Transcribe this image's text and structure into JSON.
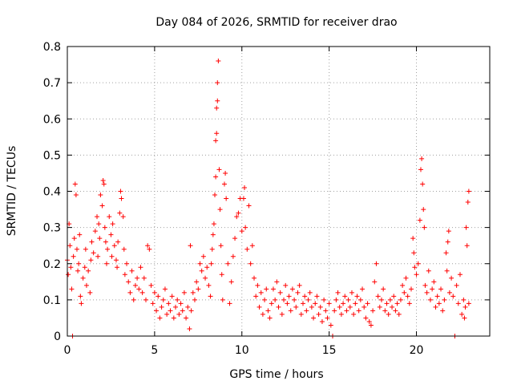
{
  "chart_data": {
    "type": "scatter",
    "title": "Day 084 of 2026, SRMTID for receiver drao",
    "xlabel": "GPS time / hours",
    "ylabel": "SRMTID / TECUs",
    "xlim": [
      0,
      24.2
    ],
    "ylim": [
      0,
      0.8
    ],
    "xticks": [
      0,
      5,
      10,
      15,
      20
    ],
    "xtick_labels": [
      "0",
      "5",
      "10",
      "15",
      "20"
    ],
    "yticks": [
      0,
      0.1,
      0.2,
      0.3,
      0.4,
      0.5,
      0.6,
      0.7,
      0.8
    ],
    "ytick_labels": [
      "0",
      "0.1",
      "0.2",
      "0.3",
      "0.4",
      "0.5",
      "0.6",
      "0.7",
      "0.8"
    ],
    "grid": true,
    "marker": "+",
    "color": "#ff0000",
    "series": [
      {
        "name": "SRMTID",
        "points": [
          [
            0.0,
            0.21
          ],
          [
            0.05,
            0.17
          ],
          [
            0.1,
            0.31
          ],
          [
            0.15,
            0.25
          ],
          [
            0.2,
            0.19
          ],
          [
            0.25,
            0.13
          ],
          [
            0.3,
            0.0
          ],
          [
            0.35,
            0.22
          ],
          [
            0.4,
            0.27
          ],
          [
            0.45,
            0.42
          ],
          [
            0.5,
            0.39
          ],
          [
            0.55,
            0.24
          ],
          [
            0.6,
            0.18
          ],
          [
            0.65,
            0.2
          ],
          [
            0.7,
            0.28
          ],
          [
            0.75,
            0.11
          ],
          [
            0.8,
            0.09
          ],
          [
            0.9,
            0.16
          ],
          [
            1.0,
            0.19
          ],
          [
            1.05,
            0.24
          ],
          [
            1.1,
            0.14
          ],
          [
            1.2,
            0.18
          ],
          [
            1.3,
            0.12
          ],
          [
            1.35,
            0.21
          ],
          [
            1.4,
            0.26
          ],
          [
            1.5,
            0.23
          ],
          [
            1.6,
            0.29
          ],
          [
            1.7,
            0.33
          ],
          [
            1.75,
            0.22
          ],
          [
            1.8,
            0.31
          ],
          [
            1.85,
            0.27
          ],
          [
            1.9,
            0.39
          ],
          [
            2.0,
            0.36
          ],
          [
            2.05,
            0.43
          ],
          [
            2.1,
            0.42
          ],
          [
            2.15,
            0.3
          ],
          [
            2.2,
            0.26
          ],
          [
            2.25,
            0.2
          ],
          [
            2.3,
            0.24
          ],
          [
            2.4,
            0.33
          ],
          [
            2.5,
            0.28
          ],
          [
            2.55,
            0.22
          ],
          [
            2.6,
            0.31
          ],
          [
            2.7,
            0.25
          ],
          [
            2.8,
            0.21
          ],
          [
            2.85,
            0.19
          ],
          [
            2.9,
            0.26
          ],
          [
            3.0,
            0.34
          ],
          [
            3.05,
            0.4
          ],
          [
            3.1,
            0.38
          ],
          [
            3.2,
            0.33
          ],
          [
            3.25,
            0.24
          ],
          [
            3.3,
            0.17
          ],
          [
            3.4,
            0.2
          ],
          [
            3.5,
            0.15
          ],
          [
            3.6,
            0.12
          ],
          [
            3.7,
            0.18
          ],
          [
            3.8,
            0.1
          ],
          [
            3.9,
            0.14
          ],
          [
            4.0,
            0.16
          ],
          [
            4.1,
            0.13
          ],
          [
            4.2,
            0.19
          ],
          [
            4.3,
            0.12
          ],
          [
            4.4,
            0.16
          ],
          [
            4.5,
            0.1
          ],
          [
            4.6,
            0.25
          ],
          [
            4.7,
            0.24
          ],
          [
            4.8,
            0.14
          ],
          [
            4.9,
            0.09
          ],
          [
            5.0,
            0.12
          ],
          [
            5.1,
            0.07
          ],
          [
            5.2,
            0.11
          ],
          [
            5.3,
            0.05
          ],
          [
            5.4,
            0.08
          ],
          [
            5.5,
            0.1
          ],
          [
            5.6,
            0.13
          ],
          [
            5.7,
            0.06
          ],
          [
            5.8,
            0.09
          ],
          [
            5.9,
            0.07
          ],
          [
            6.0,
            0.11
          ],
          [
            6.1,
            0.05
          ],
          [
            6.2,
            0.08
          ],
          [
            6.3,
            0.1
          ],
          [
            6.4,
            0.06
          ],
          [
            6.5,
            0.09
          ],
          [
            6.6,
            0.07
          ],
          [
            6.7,
            0.12
          ],
          [
            6.8,
            0.05
          ],
          [
            6.9,
            0.08
          ],
          [
            7.0,
            0.02
          ],
          [
            7.05,
            0.25
          ],
          [
            7.1,
            0.07
          ],
          [
            7.2,
            0.12
          ],
          [
            7.3,
            0.1
          ],
          [
            7.4,
            0.15
          ],
          [
            7.5,
            0.13
          ],
          [
            7.6,
            0.2
          ],
          [
            7.7,
            0.18
          ],
          [
            7.8,
            0.22
          ],
          [
            7.9,
            0.16
          ],
          [
            8.0,
            0.19
          ],
          [
            8.1,
            0.14
          ],
          [
            8.2,
            0.11
          ],
          [
            8.25,
            0.2
          ],
          [
            8.3,
            0.24
          ],
          [
            8.35,
            0.28
          ],
          [
            8.4,
            0.31
          ],
          [
            8.45,
            0.39
          ],
          [
            8.5,
            0.44
          ],
          [
            8.5,
            0.54
          ],
          [
            8.55,
            0.56
          ],
          [
            8.55,
            0.63
          ],
          [
            8.6,
            0.65
          ],
          [
            8.6,
            0.7
          ],
          [
            8.65,
            0.76
          ],
          [
            8.7,
            0.46
          ],
          [
            8.75,
            0.35
          ],
          [
            8.8,
            0.25
          ],
          [
            8.85,
            0.17
          ],
          [
            8.9,
            0.1
          ],
          [
            9.0,
            0.42
          ],
          [
            9.05,
            0.45
          ],
          [
            9.1,
            0.38
          ],
          [
            9.2,
            0.2
          ],
          [
            9.3,
            0.09
          ],
          [
            9.4,
            0.15
          ],
          [
            9.5,
            0.22
          ],
          [
            9.6,
            0.27
          ],
          [
            9.7,
            0.33
          ],
          [
            9.8,
            0.34
          ],
          [
            9.9,
            0.38
          ],
          [
            10.0,
            0.29
          ],
          [
            10.1,
            0.38
          ],
          [
            10.15,
            0.41
          ],
          [
            10.2,
            0.3
          ],
          [
            10.3,
            0.24
          ],
          [
            10.4,
            0.36
          ],
          [
            10.5,
            0.2
          ],
          [
            10.6,
            0.25
          ],
          [
            10.7,
            0.16
          ],
          [
            10.8,
            0.11
          ],
          [
            10.9,
            0.14
          ],
          [
            11.0,
            0.08
          ],
          [
            11.1,
            0.12
          ],
          [
            11.2,
            0.06
          ],
          [
            11.3,
            0.1
          ],
          [
            11.4,
            0.13
          ],
          [
            11.5,
            0.07
          ],
          [
            11.6,
            0.05
          ],
          [
            11.7,
            0.09
          ],
          [
            11.8,
            0.13
          ],
          [
            11.9,
            0.1
          ],
          [
            12.0,
            0.15
          ],
          [
            12.1,
            0.08
          ],
          [
            12.2,
            0.12
          ],
          [
            12.3,
            0.06
          ],
          [
            12.4,
            0.1
          ],
          [
            12.5,
            0.14
          ],
          [
            12.6,
            0.09
          ],
          [
            12.7,
            0.11
          ],
          [
            12.8,
            0.07
          ],
          [
            12.9,
            0.13
          ],
          [
            13.0,
            0.1
          ],
          [
            13.1,
            0.08
          ],
          [
            13.2,
            0.12
          ],
          [
            13.3,
            0.14
          ],
          [
            13.4,
            0.06
          ],
          [
            13.5,
            0.09
          ],
          [
            13.6,
            0.11
          ],
          [
            13.7,
            0.07
          ],
          [
            13.8,
            0.1
          ],
          [
            13.9,
            0.12
          ],
          [
            14.0,
            0.08
          ],
          [
            14.1,
            0.05
          ],
          [
            14.2,
            0.09
          ],
          [
            14.3,
            0.11
          ],
          [
            14.4,
            0.06
          ],
          [
            14.5,
            0.08
          ],
          [
            14.6,
            0.04
          ],
          [
            14.7,
            0.1
          ],
          [
            14.8,
            0.07
          ],
          [
            14.9,
            0.05
          ],
          [
            15.0,
            0.09
          ],
          [
            15.1,
            0.03
          ],
          [
            15.2,
            0.0
          ],
          [
            15.3,
            0.07
          ],
          [
            15.4,
            0.1
          ],
          [
            15.5,
            0.12
          ],
          [
            15.6,
            0.08
          ],
          [
            15.7,
            0.06
          ],
          [
            15.8,
            0.09
          ],
          [
            15.9,
            0.11
          ],
          [
            16.0,
            0.07
          ],
          [
            16.1,
            0.1
          ],
          [
            16.2,
            0.08
          ],
          [
            16.3,
            0.12
          ],
          [
            16.4,
            0.06
          ],
          [
            16.5,
            0.09
          ],
          [
            16.6,
            0.11
          ],
          [
            16.7,
            0.07
          ],
          [
            16.8,
            0.1
          ],
          [
            16.9,
            0.13
          ],
          [
            17.0,
            0.08
          ],
          [
            17.1,
            0.05
          ],
          [
            17.2,
            0.09
          ],
          [
            17.3,
            0.04
          ],
          [
            17.4,
            0.03
          ],
          [
            17.5,
            0.07
          ],
          [
            17.6,
            0.15
          ],
          [
            17.7,
            0.2
          ],
          [
            17.8,
            0.11
          ],
          [
            17.9,
            0.08
          ],
          [
            18.0,
            0.1
          ],
          [
            18.1,
            0.13
          ],
          [
            18.2,
            0.07
          ],
          [
            18.3,
            0.09
          ],
          [
            18.4,
            0.06
          ],
          [
            18.5,
            0.1
          ],
          [
            18.6,
            0.08
          ],
          [
            18.7,
            0.11
          ],
          [
            18.8,
            0.07
          ],
          [
            18.9,
            0.09
          ],
          [
            19.0,
            0.06
          ],
          [
            19.1,
            0.1
          ],
          [
            19.2,
            0.14
          ],
          [
            19.3,
            0.12
          ],
          [
            19.4,
            0.16
          ],
          [
            19.5,
            0.11
          ],
          [
            19.6,
            0.09
          ],
          [
            19.7,
            0.13
          ],
          [
            19.8,
            0.27
          ],
          [
            19.85,
            0.23
          ],
          [
            19.9,
            0.19
          ],
          [
            20.0,
            0.17
          ],
          [
            20.1,
            0.2
          ],
          [
            20.2,
            0.32
          ],
          [
            20.25,
            0.46
          ],
          [
            20.3,
            0.49
          ],
          [
            20.35,
            0.42
          ],
          [
            20.4,
            0.35
          ],
          [
            20.45,
            0.3
          ],
          [
            20.5,
            0.14
          ],
          [
            20.6,
            0.12
          ],
          [
            20.7,
            0.18
          ],
          [
            20.8,
            0.1
          ],
          [
            20.9,
            0.13
          ],
          [
            21.0,
            0.15
          ],
          [
            21.1,
            0.08
          ],
          [
            21.2,
            0.11
          ],
          [
            21.3,
            0.09
          ],
          [
            21.4,
            0.13
          ],
          [
            21.5,
            0.07
          ],
          [
            21.6,
            0.1
          ],
          [
            21.7,
            0.23
          ],
          [
            21.75,
            0.18
          ],
          [
            21.8,
            0.26
          ],
          [
            21.85,
            0.29
          ],
          [
            21.9,
            0.12
          ],
          [
            22.0,
            0.16
          ],
          [
            22.1,
            0.11
          ],
          [
            22.2,
            0.0
          ],
          [
            22.3,
            0.14
          ],
          [
            22.4,
            0.09
          ],
          [
            22.5,
            0.17
          ],
          [
            22.6,
            0.06
          ],
          [
            22.7,
            0.1
          ],
          [
            22.75,
            0.05
          ],
          [
            22.8,
            0.08
          ],
          [
            22.85,
            0.3
          ],
          [
            22.9,
            0.25
          ],
          [
            22.95,
            0.37
          ],
          [
            23.0,
            0.4
          ],
          [
            23.0,
            0.09
          ]
        ]
      }
    ]
  }
}
